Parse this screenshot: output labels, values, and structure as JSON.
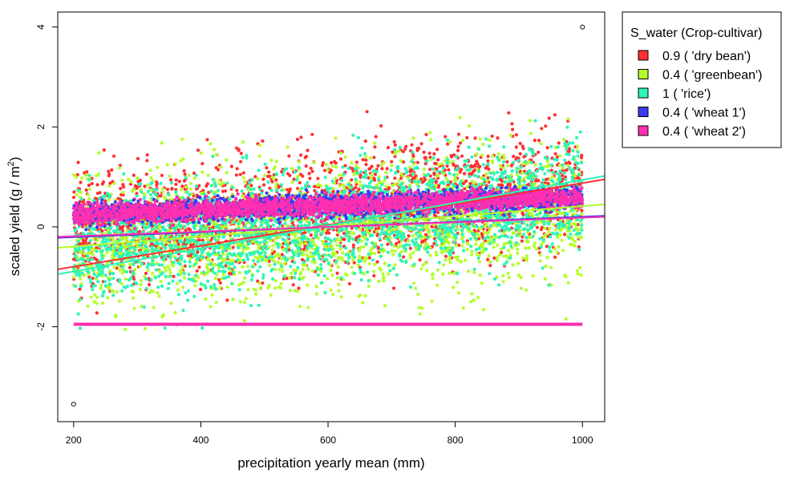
{
  "chart_data": {
    "type": "scatter",
    "title": "",
    "xlabel": "precipitation yearly mean (mm)",
    "ylabel_parts": {
      "pre": "scaled yield (g / m",
      "sup": "2",
      "post": ")"
    },
    "xlim": [
      175,
      1035
    ],
    "ylim": [
      -3.9,
      4.3
    ],
    "xticks": [
      200,
      400,
      600,
      800,
      1000
    ],
    "yticks": [
      -2,
      0,
      2,
      4
    ],
    "grid": false,
    "legend": {
      "title": "S_water (Crop-cultivar)",
      "placement": "right-outside-top",
      "entries": [
        {
          "label": "0.9 ( 'dry bean')",
          "color": "#FF3030"
        },
        {
          "label": "0.4 ( 'greenbean')",
          "color": "#B3FF2A"
        },
        {
          "label": "1 ( 'rice')",
          "color": "#2EF5B8"
        },
        {
          "label": "0.4 ( 'wheat 1')",
          "color": "#3B3BF0"
        },
        {
          "label": "0.4 ( 'wheat 2')",
          "color": "#FF2FB0"
        }
      ]
    },
    "series": [
      {
        "name": "0.9 ( 'dry bean')",
        "color": "#FF3030",
        "cloud": {
          "x_range": [
            200,
            1000
          ],
          "center_at_x_min": -0.1,
          "center_at_x_max": 0.8,
          "spread": 0.95,
          "y_min": -2.3,
          "y_max": 3.0
        },
        "trend": {
          "x": [
            175,
            1035
          ],
          "y": [
            -0.85,
            0.95
          ]
        }
      },
      {
        "name": "0.4 ( 'greenbean')",
        "color": "#B3FF2A",
        "cloud": {
          "x_range": [
            200,
            1000
          ],
          "center_at_x_min": -0.35,
          "center_at_x_max": 0.35,
          "spread": 1.1,
          "y_min": -3.6,
          "y_max": 4.0
        },
        "trend": {
          "x": [
            175,
            1035
          ],
          "y": [
            -0.42,
            0.45
          ]
        }
      },
      {
        "name": "1 ( 'rice')",
        "color": "#2EF5B8",
        "cloud": {
          "x_range": [
            200,
            1000
          ],
          "center_at_x_min": -0.4,
          "center_at_x_max": 0.6,
          "spread": 0.9,
          "y_min": -2.5,
          "y_max": 2.4
        },
        "trend": {
          "x": [
            175,
            1035
          ],
          "y": [
            -0.95,
            1.02
          ]
        }
      },
      {
        "name": "0.4 ( 'wheat 1')",
        "color": "#3B3BF0",
        "cloud": {
          "x_range": [
            200,
            1000
          ],
          "center_at_x_min": 0.25,
          "center_at_x_max": 0.6,
          "spread": 0.18,
          "y_min": -0.1,
          "y_max": 1.2
        },
        "trend": {
          "x": [
            175,
            1035
          ],
          "y": [
            -0.22,
            0.22
          ]
        }
      },
      {
        "name": "0.4 ( 'wheat 2')",
        "color": "#FF2FB0",
        "cloud": {
          "x_range": [
            200,
            1000
          ],
          "center_at_x_min": 0.25,
          "center_at_x_max": 0.6,
          "spread": 0.16,
          "y_min": -0.1,
          "y_max": 1.1
        },
        "trend": {
          "x": [
            175,
            1035
          ],
          "y": [
            -0.2,
            0.2
          ]
        },
        "flat_line": {
          "x": [
            200,
            1000
          ],
          "y": -1.95
        }
      }
    ],
    "outlier_points": [
      {
        "x": 200,
        "y": -3.55
      },
      {
        "x": 1000,
        "y": 4.0
      }
    ]
  }
}
